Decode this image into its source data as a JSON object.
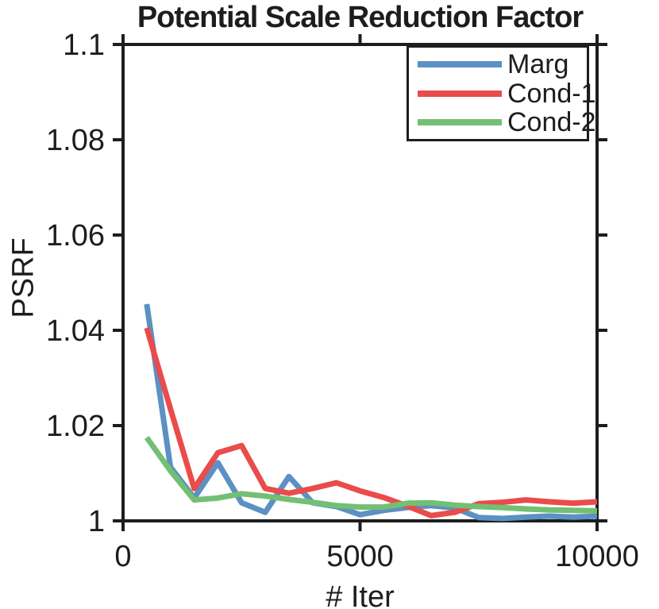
{
  "figure": {
    "title": "Potential Scale Reduction Factor",
    "xlabel": "# Iter",
    "ylabel": "PSRF"
  },
  "legend": {
    "position": "top-right",
    "items": [
      {
        "label": "Marg"
      },
      {
        "label": "Cond-1"
      },
      {
        "label": "Cond-2"
      }
    ]
  },
  "chart_data": {
    "type": "line",
    "title": "Potential Scale Reduction Factor",
    "xlabel": "# Iter",
    "ylabel": "PSRF",
    "xlim": [
      0,
      10000
    ],
    "ylim": [
      1.0,
      1.1
    ],
    "grid": false,
    "legend_position": "top-right",
    "axis_color": "#1d1d1d",
    "line_width": 7,
    "xticks": {
      "values": [
        0,
        5000,
        10000
      ],
      "labels": [
        "0",
        "5000",
        "10000"
      ]
    },
    "yticks": {
      "values": [
        1.0,
        1.02,
        1.04,
        1.06,
        1.08,
        1.1
      ],
      "labels": [
        "1",
        "1.02",
        "1.04",
        "1.06",
        "1.08",
        "1.1"
      ]
    },
    "x": [
      500,
      1000,
      1500,
      2000,
      2500,
      3000,
      3500,
      4000,
      4500,
      5000,
      5500,
      6000,
      6500,
      7000,
      7500,
      8000,
      8500,
      9000,
      9500,
      10000
    ],
    "series": [
      {
        "name": "Marg",
        "color": "#5b91c3",
        "values": [
          1.0455,
          1.0113,
          1.0048,
          1.0122,
          1.0038,
          1.0018,
          1.0093,
          1.0038,
          1.003,
          1.0013,
          1.0022,
          1.0028,
          1.0032,
          1.0027,
          1.0007,
          1.0005,
          1.0008,
          1.001,
          1.0008,
          1.001
        ]
      },
      {
        "name": "Cond-1",
        "color": "#ea4b4b",
        "values": [
          1.0405,
          1.0235,
          1.0068,
          1.0143,
          1.0158,
          1.0068,
          1.0058,
          1.0068,
          1.008,
          1.0063,
          1.0049,
          1.0031,
          1.0011,
          1.0018,
          1.0036,
          1.0039,
          1.0044,
          1.004,
          1.0037,
          1.004
        ]
      },
      {
        "name": "Cond-2",
        "color": "#73bf73",
        "values": [
          1.0175,
          1.0105,
          1.0044,
          1.0048,
          1.0057,
          1.0052,
          1.0045,
          1.0039,
          1.0032,
          1.0029,
          1.0029,
          1.0037,
          1.0038,
          1.0033,
          1.003,
          1.0028,
          1.0025,
          1.0023,
          1.0022,
          1.0021
        ]
      }
    ]
  }
}
